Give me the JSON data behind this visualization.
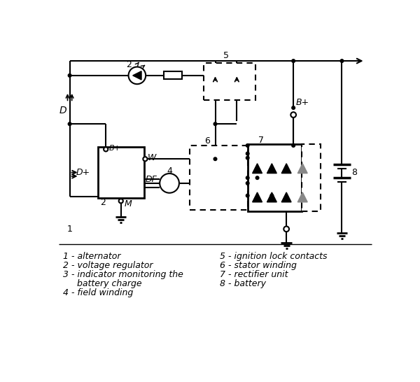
{
  "background_color": "#ffffff",
  "figsize": [
    6.0,
    5.46
  ],
  "dpi": 100,
  "legend_left": [
    "1 - alternator",
    "2 - voltage regulator",
    "3 - indicator monitoring the",
    "     battery charge",
    "4 - field winding"
  ],
  "legend_right": [
    "5 - ignition lock contacts",
    "6 - stator winding",
    "7 - rectifier unit",
    "8 - battery"
  ]
}
